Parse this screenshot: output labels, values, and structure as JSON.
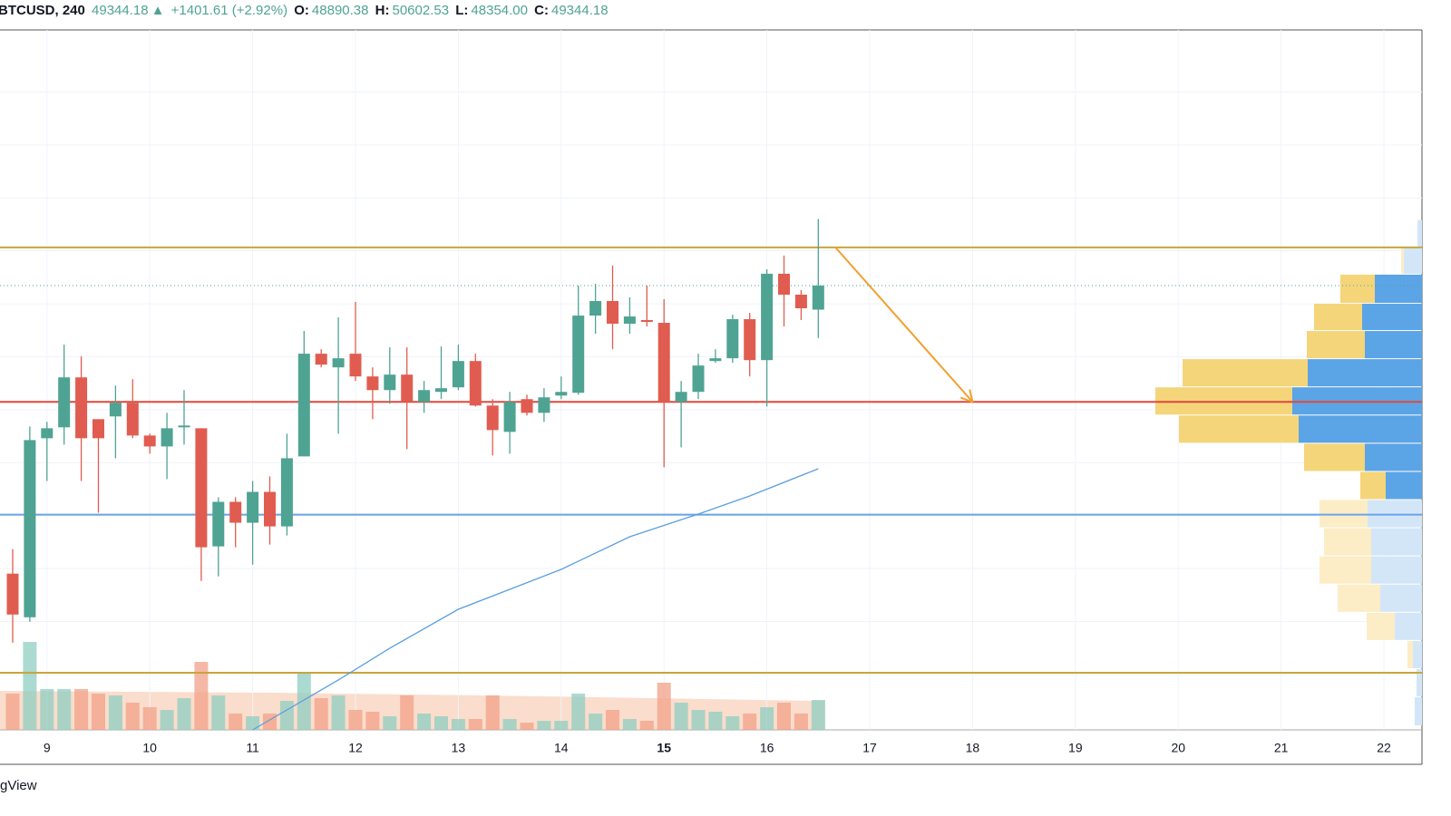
{
  "header": {
    "symbol": "BTCUSD, 240",
    "last": "49344.18",
    "arrow": "▲",
    "change": "+1401.61 (+2.92%)",
    "o_label": "O:",
    "o": "48890.38",
    "h_label": "H:",
    "h": "50602.53",
    "l_label": "L:",
    "l": "48354.00",
    "c_label": "C:",
    "c": "49344.18"
  },
  "footer": "gView",
  "chart_data": {
    "type": "candlestick",
    "up_color": "#4fa393",
    "down_color": "#e05c50",
    "xlim": [
      -0.74,
      82.22
    ],
    "xticks": [
      {
        "value": 2,
        "label": "9"
      },
      {
        "value": 8,
        "label": "10"
      },
      {
        "value": 14,
        "label": "11"
      },
      {
        "value": 20,
        "label": "12"
      },
      {
        "value": 26,
        "label": "13"
      },
      {
        "value": 32,
        "label": "14"
      },
      {
        "value": 38,
        "label": "15"
      },
      {
        "value": 44,
        "label": "16"
      },
      {
        "value": 50,
        "label": "17"
      },
      {
        "value": 56,
        "label": "18"
      },
      {
        "value": 62,
        "label": "19"
      },
      {
        "value": 68,
        "label": "20"
      },
      {
        "value": 74,
        "label": "21"
      },
      {
        "value": 80,
        "label": "22"
      }
    ],
    "bold_xtick": 6,
    "ylim": [
      40955,
      54172
    ],
    "yticks": [
      42000,
      43000,
      44000,
      45000,
      46000,
      47000,
      48000,
      49000,
      50000,
      51000,
      52000,
      53000
    ],
    "grid": true,
    "open": [
      43905,
      43081,
      46462,
      46668,
      47611,
      46822,
      46874,
      47131,
      46513,
      46307,
      46668,
      46650,
      44420,
      45261,
      44866,
      45449,
      44797,
      46119,
      48058,
      47800,
      48058,
      47629,
      47371,
      47663,
      47148,
      47337,
      47423,
      47920,
      47079,
      46582,
      47200,
      46942,
      47268,
      47320,
      48778,
      49053,
      48624,
      48693,
      48641,
      47148,
      47337,
      47920,
      47972,
      48710,
      47937,
      49568,
      49173,
      48890.38
    ],
    "high": [
      44368,
      46685,
      46771,
      48229,
      48006,
      46822,
      47457,
      47577,
      46548,
      46942,
      47371,
      46650,
      45346,
      45346,
      45655,
      45741,
      46548,
      48487,
      48143,
      48744,
      49036,
      47800,
      48178,
      48178,
      47543,
      48195,
      48229,
      48058,
      47200,
      47337,
      47285,
      47406,
      47629,
      49345,
      49379,
      49722,
      49122,
      49345,
      49087,
      47543,
      48058,
      48143,
      48795,
      48830,
      49653,
      49911,
      49259,
      50602.53
    ],
    "low": [
      42601,
      42995,
      45655,
      46342,
      45655,
      45055,
      46084,
      46462,
      46170,
      45690,
      46342,
      43768,
      43853,
      44403,
      44076,
      44454,
      44626,
      46119,
      47800,
      46548,
      47543,
      46822,
      47114,
      46256,
      46942,
      47200,
      47371,
      47062,
      46136,
      46170,
      46891,
      46771,
      47200,
      47285,
      48435,
      48143,
      48435,
      48572,
      45913,
      46290,
      47200,
      47886,
      47886,
      47629,
      47062,
      48572,
      48693,
      48354
    ],
    "close": [
      43133,
      46427,
      46650,
      47611,
      46462,
      46462,
      47131,
      46513,
      46307,
      46650,
      46702,
      44403,
      45261,
      44866,
      45449,
      44797,
      46084,
      48058,
      47852,
      47972,
      47629,
      47371,
      47663,
      47148,
      47371,
      47406,
      47920,
      47079,
      46616,
      47148,
      46942,
      47234,
      47337,
      48778,
      49053,
      48624,
      48761,
      48658,
      47148,
      47337,
      47835,
      47972,
      48710,
      47937,
      49568,
      49173,
      48916,
      49344.18
    ],
    "volume": [
      40,
      97,
      45,
      45,
      45,
      40,
      38,
      30,
      25,
      22,
      35,
      75,
      38,
      18,
      15,
      18,
      32,
      63,
      35,
      38,
      22,
      20,
      15,
      38,
      18,
      15,
      12,
      12,
      38,
      12,
      8,
      10,
      10,
      40,
      18,
      22,
      12,
      10,
      52,
      30,
      22,
      20,
      15,
      18,
      25,
      30,
      18,
      33
    ],
    "volume_ylim": [
      0,
      100
    ],
    "ma": {
      "color": "#5a9fe0",
      "x": [
        14,
        19,
        22,
        26,
        32,
        36,
        40,
        43,
        47
      ],
      "values": [
        40955,
        41897,
        42496,
        43232,
        43985,
        44602,
        45030,
        45372,
        45886
      ]
    },
    "levels": [
      {
        "value": 50065,
        "color": "#c9a53a"
      },
      {
        "value": 49344.18,
        "color": "#4fa393",
        "dotted": true
      },
      {
        "value": 47148,
        "color": "#e0493c"
      },
      {
        "value": 45020,
        "color": "#6aa4e8"
      },
      {
        "value": 42034,
        "color": "#c9a53a"
      }
    ],
    "arrow": {
      "color": "#f0a030",
      "from": [
        48,
        50065
      ],
      "to": [
        56,
        47148
      ]
    },
    "profile": {
      "bins": [
        50580,
        50065,
        49551,
        49001,
        48487,
        47955,
        47423,
        46891,
        46359,
        45827,
        45295,
        44763,
        44231,
        43699,
        43167,
        42635,
        42103,
        41571,
        41022
      ],
      "up": [
        5,
        20,
        52,
        66,
        63,
        126,
        143,
        136,
        63,
        40,
        60,
        56,
        56,
        46,
        30,
        10,
        6,
        8
      ],
      "down": [
        0,
        3,
        38,
        53,
        64,
        138,
        151,
        132,
        67,
        28,
        53,
        52,
        57,
        47,
        31,
        6,
        0,
        0
      ],
      "value_area": [
        false,
        false,
        true,
        true,
        true,
        true,
        true,
        true,
        true,
        true,
        false,
        false,
        false,
        false,
        false,
        false,
        false,
        false
      ],
      "xlim": [
        0,
        300
      ],
      "up_color": "#5ba4e6",
      "down_color": "#f5d57a",
      "up_faded": "#d3e6f8",
      "down_faded": "#fcedc6"
    }
  }
}
